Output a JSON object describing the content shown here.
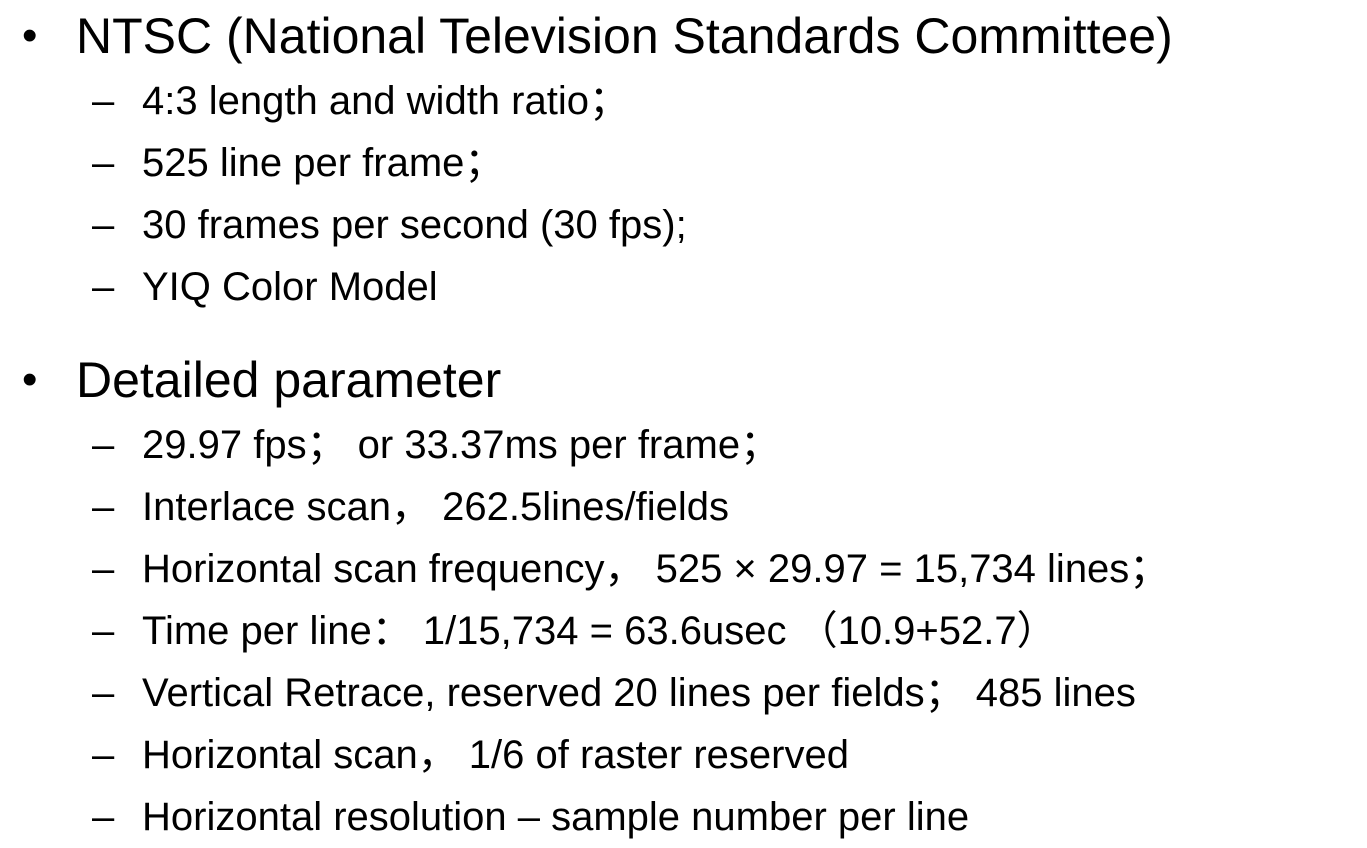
{
  "slide": {
    "bullet_char": "•",
    "dash_char": "–",
    "sections": [
      {
        "title": "NTSC (National Television Standards Committee)",
        "items": [
          "4:3 length and width ratio；",
          "525 line per frame；",
          "30 frames per second (30 fps);",
          "YIQ Color Model"
        ]
      },
      {
        "title": "Detailed parameter",
        "items": [
          "29.97 fps； or  33.37ms per frame；",
          "Interlace scan， 262.5lines/fields",
          "Horizontal scan frequency， 525 × 29.97 = 15,734 lines；",
          "Time per line： 1/15,734 = 63.6usec （10.9+52.7）",
          "Vertical Retrace,  reserved 20 lines per fields； 485 lines",
          "Horizontal scan，  1/6  of raster reserved",
          "Horizontal resolution – sample number per line"
        ]
      }
    ]
  }
}
